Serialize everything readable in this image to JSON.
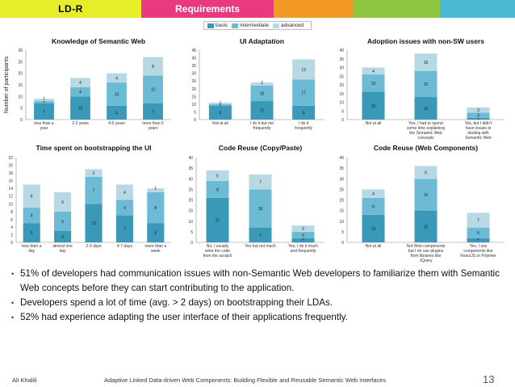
{
  "header": {
    "left_label": "LD-R",
    "center_label": "Requirements"
  },
  "legend": [
    {
      "name": "basic",
      "color": "#3a98b9"
    },
    {
      "name": "intermediate",
      "color": "#6cbad3"
    },
    {
      "name": "advanced",
      "color": "#b8d9e4"
    }
  ],
  "chart_data": [
    {
      "type": "bar",
      "stacked": true,
      "title": "Knowledge of Semantic Web",
      "ylabel": "Number of participants",
      "categories": [
        "less than a year",
        "2-3 years",
        "4-5 years",
        "more than 5 years"
      ],
      "ylim": [
        0,
        30
      ],
      "yticks": [
        0,
        5,
        10,
        15,
        20,
        25,
        30
      ],
      "series": [
        {
          "name": "basic",
          "values": [
            7,
            10,
            6,
            7
          ]
        },
        {
          "name": "intermediate",
          "values": [
            1,
            4,
            10,
            12
          ]
        },
        {
          "name": "advanced",
          "values": [
            1,
            4,
            4,
            8
          ]
        }
      ]
    },
    {
      "type": "bar",
      "stacked": true,
      "title": "UI Adaptation",
      "ylabel": "",
      "categories": [
        "Not at all",
        "I do it but not frequently",
        "I do it frequently"
      ],
      "ylim": [
        0,
        45
      ],
      "yticks": [
        0,
        5,
        10,
        15,
        20,
        25,
        30,
        35,
        40,
        45
      ],
      "series": [
        {
          "name": "basic",
          "values": [
            9,
            12,
            9
          ]
        },
        {
          "name": "intermediate",
          "values": [
            1,
            10,
            17
          ]
        },
        {
          "name": "advanced",
          "values": [
            1,
            2,
            13
          ]
        }
      ]
    },
    {
      "type": "bar",
      "stacked": true,
      "title": "Adoption issues with non-SW users",
      "ylabel": "",
      "categories": [
        "Not at all",
        "Yes, I had to spend some time explaining the Semantic Web concepts",
        "Yes, but I didn't have issues in dealing with Semantic Web knowledge"
      ],
      "ylim": [
        0,
        40
      ],
      "yticks": [
        0,
        5,
        10,
        15,
        20,
        25,
        30,
        35,
        40
      ],
      "series": [
        {
          "name": "basic",
          "values": [
            16,
            13,
            1
          ]
        },
        {
          "name": "intermediate",
          "values": [
            10,
            15,
            3
          ]
        },
        {
          "name": "advanced",
          "values": [
            4,
            10,
            3
          ]
        }
      ]
    },
    {
      "type": "bar",
      "stacked": true,
      "title": "Time spent on bootstrapping the UI",
      "ylabel": "Number of participants",
      "categories": [
        "less than a day",
        "almost one day",
        "2-3 days",
        "4-7 days",
        "more than a week"
      ],
      "ylim": [
        0,
        22
      ],
      "yticks": [
        0,
        2,
        4,
        6,
        8,
        10,
        12,
        14,
        16,
        18,
        20,
        22
      ],
      "series": [
        {
          "name": "basic",
          "values": [
            5,
            3,
            10,
            7,
            5
          ]
        },
        {
          "name": "intermediate",
          "values": [
            4,
            5,
            7,
            4,
            8
          ]
        },
        {
          "name": "advanced",
          "values": [
            6,
            5,
            2,
            4,
            1
          ]
        }
      ]
    },
    {
      "type": "bar",
      "stacked": true,
      "title": "Code Reuse (Copy/Paste)",
      "ylabel": "",
      "categories": [
        "No, I usually write the code from the scratch",
        "Yes but not much",
        "Yes, I do it much and frequently"
      ],
      "ylim": [
        0,
        40
      ],
      "yticks": [
        0,
        5,
        10,
        15,
        20,
        25,
        30,
        35,
        40
      ],
      "series": [
        {
          "name": "basic",
          "values": [
            21,
            7,
            2
          ]
        },
        {
          "name": "intermediate",
          "values": [
            8,
            18,
            3
          ]
        },
        {
          "name": "advanced",
          "values": [
            5,
            7,
            3
          ]
        }
      ]
    },
    {
      "type": "bar",
      "stacked": true,
      "title": "Code Reuse (Web Components)",
      "ylabel": "",
      "categories": [
        "Not at all",
        "Not Web components but I do use plugins from libraries like JQuery",
        "Yes, I use components like ReactJS or Polymer"
      ],
      "ylim": [
        0,
        40
      ],
      "yticks": [
        0,
        5,
        10,
        15,
        20,
        25,
        30,
        35,
        40
      ],
      "series": [
        {
          "name": "basic",
          "values": [
            13,
            15,
            2
          ]
        },
        {
          "name": "intermediate",
          "values": [
            8,
            15,
            5
          ]
        },
        {
          "name": "advanced",
          "values": [
            4,
            6,
            7
          ]
        }
      ]
    }
  ],
  "bullets": [
    "51% of developers had communication issues with non-Semantic Web developers to familiarize them with Semantic Web concepts before they can start contributing to the application.",
    "Developers spend a lot of time (avg. > 2 days) on bootstrapping their LDAs.",
    "52% had experience adapting the user interface of their applications frequently."
  ],
  "footer": {
    "author": "Ali Khalili",
    "title": "Adaptive Linked Data-driven Web Components: Building Flexible and Reusable Semantic Web Interfaces",
    "page": "13"
  }
}
